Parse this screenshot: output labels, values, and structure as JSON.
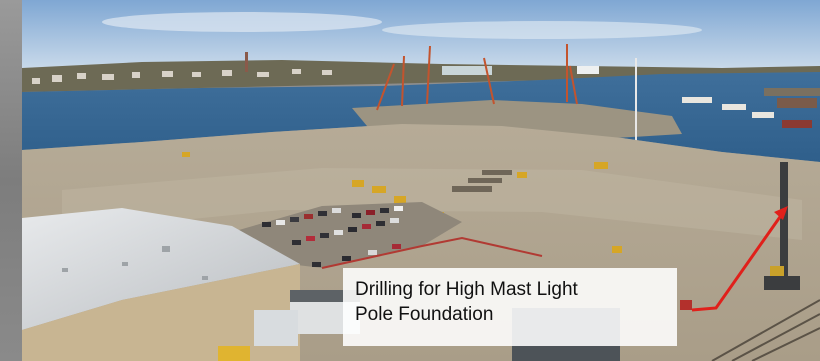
{
  "photo": {
    "caption": {
      "line1": "Drilling for High Mast Light",
      "line2": "Pole Foundation"
    },
    "annotation": {
      "color": "#e0201b"
    }
  }
}
